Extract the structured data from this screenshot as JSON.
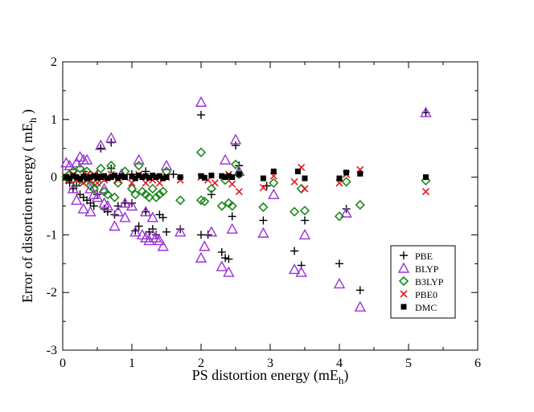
{
  "chart_data": {
    "type": "scatter",
    "xlabel": "PS distortion energy (mE",
    "xlabel_sub": "h",
    "xlabel_end": ")",
    "ylabel": "Error of distortion energy ( mE",
    "ylabel_sub": "h",
    "ylabel_end": " )",
    "xlim": [
      0,
      6
    ],
    "ylim": [
      -3,
      2
    ],
    "xticks": [
      0,
      1,
      2,
      3,
      4,
      5,
      6
    ],
    "yticks": [
      -3,
      -2,
      -1,
      0,
      1,
      2
    ],
    "grid": false,
    "legend_position": "bottom-right",
    "series": [
      {
        "name": "PBE",
        "marker": "plus",
        "color": "#000000",
        "points": [
          [
            0.05,
            -0.05
          ],
          [
            0.1,
            -0.1
          ],
          [
            0.15,
            -0.2
          ],
          [
            0.2,
            -0.15
          ],
          [
            0.25,
            -0.3
          ],
          [
            0.3,
            -0.35
          ],
          [
            0.35,
            -0.4
          ],
          [
            0.4,
            -0.45
          ],
          [
            0.45,
            -0.5
          ],
          [
            0.5,
            -0.3
          ],
          [
            0.55,
            0.5
          ],
          [
            0.6,
            -0.55
          ],
          [
            0.65,
            -0.6
          ],
          [
            0.7,
            0.6
          ],
          [
            0.75,
            -0.65
          ],
          [
            0.8,
            -0.5
          ],
          [
            0.9,
            -0.45
          ],
          [
            1.0,
            -0.45
          ],
          [
            1.05,
            -0.93
          ],
          [
            1.1,
            -0.85
          ],
          [
            1.2,
            -0.6
          ],
          [
            1.25,
            -0.95
          ],
          [
            1.3,
            -0.9
          ],
          [
            1.35,
            -1.0
          ],
          [
            1.4,
            -0.65
          ],
          [
            1.45,
            -0.7
          ],
          [
            1.5,
            -0.95
          ],
          [
            1.7,
            -0.9
          ],
          [
            2.0,
            1.08
          ],
          [
            2.0,
            -1.0
          ],
          [
            2.1,
            -1.0
          ],
          [
            2.15,
            -0.3
          ],
          [
            2.3,
            -1.3
          ],
          [
            2.35,
            -1.4
          ],
          [
            2.4,
            -1.42
          ],
          [
            2.45,
            -0.68
          ],
          [
            2.5,
            0.55
          ],
          [
            2.55,
            0.2
          ],
          [
            2.9,
            -0.75
          ],
          [
            2.95,
            -0.15
          ],
          [
            3.35,
            -1.28
          ],
          [
            3.45,
            -1.53
          ],
          [
            3.5,
            -0.75
          ],
          [
            4.0,
            -1.5
          ],
          [
            4.1,
            -0.55
          ],
          [
            4.3,
            -1.96
          ],
          [
            5.25,
            1.12
          ],
          [
            0.3,
            0.1
          ],
          [
            0.5,
            0.05
          ],
          [
            0.7,
            0.15
          ],
          [
            1.0,
            0.05
          ],
          [
            1.2,
            0.1
          ],
          [
            1.6,
            0.05
          ]
        ]
      },
      {
        "name": "BLYP",
        "marker": "triangle",
        "color": "#9b30d9",
        "points": [
          [
            0.05,
            0.25
          ],
          [
            0.1,
            0.2
          ],
          [
            0.15,
            -0.2
          ],
          [
            0.2,
            0.25
          ],
          [
            0.25,
            0.35
          ],
          [
            0.3,
            0.3
          ],
          [
            0.35,
            0.3
          ],
          [
            0.4,
            -0.2
          ],
          [
            0.45,
            -0.3
          ],
          [
            0.5,
            -0.35
          ],
          [
            0.55,
            0.55
          ],
          [
            0.6,
            -0.45
          ],
          [
            0.65,
            -0.5
          ],
          [
            0.7,
            0.68
          ],
          [
            0.75,
            -0.85
          ],
          [
            0.8,
            -0.6
          ],
          [
            0.85,
            0.05
          ],
          [
            0.9,
            -0.45
          ],
          [
            1.0,
            -0.5
          ],
          [
            1.05,
            -0.95
          ],
          [
            1.1,
            0.3
          ],
          [
            1.15,
            -1.0
          ],
          [
            1.2,
            -1.05
          ],
          [
            1.25,
            -1.1
          ],
          [
            1.3,
            -1.0
          ],
          [
            1.35,
            -1.05
          ],
          [
            1.4,
            -1.1
          ],
          [
            1.45,
            -1.2
          ],
          [
            1.5,
            0.2
          ],
          [
            1.7,
            -0.95
          ],
          [
            2.0,
            1.3
          ],
          [
            2.0,
            -1.4
          ],
          [
            2.05,
            -1.2
          ],
          [
            2.15,
            -0.95
          ],
          [
            2.3,
            -1.55
          ],
          [
            2.35,
            0.3
          ],
          [
            2.4,
            -1.65
          ],
          [
            2.45,
            -0.9
          ],
          [
            2.5,
            0.65
          ],
          [
            2.55,
            0.1
          ],
          [
            2.9,
            -0.97
          ],
          [
            3.05,
            -0.3
          ],
          [
            3.35,
            -1.6
          ],
          [
            3.45,
            -1.65
          ],
          [
            3.5,
            -1.0
          ],
          [
            4.0,
            -1.85
          ],
          [
            4.1,
            -0.62
          ],
          [
            4.3,
            -2.25
          ],
          [
            5.25,
            1.12
          ],
          [
            0.2,
            -0.4
          ],
          [
            0.3,
            -0.55
          ],
          [
            0.4,
            -0.6
          ],
          [
            0.6,
            -0.2
          ],
          [
            0.9,
            -0.7
          ],
          [
            1.2,
            -0.6
          ],
          [
            1.3,
            -0.7
          ]
        ]
      },
      {
        "name": "B3LYP",
        "marker": "diamond",
        "color": "#1c8a1c",
        "points": [
          [
            0.05,
            0.0
          ],
          [
            0.1,
            0.05
          ],
          [
            0.15,
            0.1
          ],
          [
            0.2,
            -0.1
          ],
          [
            0.25,
            0.15
          ],
          [
            0.3,
            -0.05
          ],
          [
            0.35,
            0.1
          ],
          [
            0.4,
            -0.15
          ],
          [
            0.45,
            -0.2
          ],
          [
            0.5,
            -0.1
          ],
          [
            0.55,
            0.15
          ],
          [
            0.6,
            -0.25
          ],
          [
            0.65,
            -0.3
          ],
          [
            0.7,
            0.2
          ],
          [
            0.75,
            -0.35
          ],
          [
            0.8,
            -0.1
          ],
          [
            0.9,
            0.1
          ],
          [
            1.0,
            -0.2
          ],
          [
            1.05,
            -0.3
          ],
          [
            1.1,
            0.2
          ],
          [
            1.15,
            -0.25
          ],
          [
            1.2,
            -0.3
          ],
          [
            1.25,
            -0.35
          ],
          [
            1.3,
            -0.2
          ],
          [
            1.35,
            -0.35
          ],
          [
            1.4,
            -0.3
          ],
          [
            1.45,
            -0.25
          ],
          [
            1.5,
            0.1
          ],
          [
            1.7,
            -0.4
          ],
          [
            2.0,
            0.43
          ],
          [
            2.0,
            -0.4
          ],
          [
            2.05,
            -0.42
          ],
          [
            2.15,
            -0.2
          ],
          [
            2.3,
            -0.5
          ],
          [
            2.35,
            -0.05
          ],
          [
            2.4,
            -0.45
          ],
          [
            2.45,
            -0.5
          ],
          [
            2.5,
            0.22
          ],
          [
            2.55,
            0.05
          ],
          [
            2.9,
            -0.52
          ],
          [
            3.05,
            -0.1
          ],
          [
            3.35,
            -0.6
          ],
          [
            3.45,
            -0.2
          ],
          [
            3.5,
            -0.58
          ],
          [
            4.0,
            -0.68
          ],
          [
            4.1,
            -0.08
          ],
          [
            4.3,
            -0.48
          ],
          [
            5.25,
            -0.06
          ]
        ]
      },
      {
        "name": "PBE0",
        "marker": "x",
        "color": "#e8161c",
        "points": [
          [
            0.05,
            0.0
          ],
          [
            0.1,
            -0.05
          ],
          [
            0.15,
            0.05
          ],
          [
            0.2,
            -0.05
          ],
          [
            0.25,
            0.0
          ],
          [
            0.3,
            -0.1
          ],
          [
            0.35,
            0.05
          ],
          [
            0.4,
            -0.05
          ],
          [
            0.45,
            0.05
          ],
          [
            0.5,
            -0.1
          ],
          [
            0.55,
            0.0
          ],
          [
            0.6,
            -0.05
          ],
          [
            0.7,
            0.05
          ],
          [
            0.8,
            -0.05
          ],
          [
            0.9,
            0.0
          ],
          [
            1.0,
            -0.1
          ],
          [
            1.1,
            0.05
          ],
          [
            1.2,
            -0.1
          ],
          [
            1.3,
            -0.05
          ],
          [
            1.4,
            -0.1
          ],
          [
            1.5,
            0.0
          ],
          [
            1.7,
            -0.05
          ],
          [
            2.0,
            0.0
          ],
          [
            2.1,
            -0.05
          ],
          [
            2.2,
            -0.1
          ],
          [
            2.4,
            0.05
          ],
          [
            2.45,
            -0.12
          ],
          [
            2.55,
            -0.25
          ],
          [
            2.9,
            -0.18
          ],
          [
            3.05,
            0.02
          ],
          [
            3.35,
            -0.08
          ],
          [
            3.45,
            0.17
          ],
          [
            3.5,
            -0.2
          ],
          [
            4.0,
            -0.1
          ],
          [
            4.1,
            0.05
          ],
          [
            4.3,
            0.13
          ],
          [
            5.25,
            -0.25
          ]
        ]
      },
      {
        "name": "DMC",
        "marker": "square",
        "color": "#000000",
        "points": [
          [
            0.05,
            0.0
          ],
          [
            0.1,
            -0.02
          ],
          [
            0.15,
            0.02
          ],
          [
            0.2,
            0.0
          ],
          [
            0.25,
            -0.03
          ],
          [
            0.3,
            0.01
          ],
          [
            0.35,
            -0.02
          ],
          [
            0.4,
            0.0
          ],
          [
            0.45,
            0.02
          ],
          [
            0.5,
            -0.01
          ],
          [
            0.55,
            0.0
          ],
          [
            0.6,
            0.02
          ],
          [
            0.65,
            -0.02
          ],
          [
            0.7,
            0.0
          ],
          [
            0.75,
            0.03
          ],
          [
            0.8,
            -0.01
          ],
          [
            0.85,
            0.02
          ],
          [
            0.9,
            0.0
          ],
          [
            1.0,
            0.01
          ],
          [
            1.05,
            -0.02
          ],
          [
            1.1,
            0.03
          ],
          [
            1.15,
            0.0
          ],
          [
            1.2,
            0.02
          ],
          [
            1.25,
            -0.01
          ],
          [
            1.3,
            0.03
          ],
          [
            1.35,
            0.0
          ],
          [
            1.4,
            0.02
          ],
          [
            1.45,
            -0.02
          ],
          [
            1.5,
            0.0
          ],
          [
            1.7,
            0.0
          ],
          [
            2.0,
            0.02
          ],
          [
            2.05,
            -0.01
          ],
          [
            2.15,
            0.03
          ],
          [
            2.3,
            0.02
          ],
          [
            2.35,
            0.0
          ],
          [
            2.4,
            0.02
          ],
          [
            2.45,
            0.0
          ],
          [
            2.55,
            0.05
          ],
          [
            2.9,
            -0.02
          ],
          [
            3.05,
            0.1
          ],
          [
            3.4,
            0.1
          ],
          [
            3.5,
            -0.02
          ],
          [
            4.0,
            -0.02
          ],
          [
            4.1,
            0.08
          ],
          [
            4.3,
            0.06
          ],
          [
            5.25,
            0.0
          ]
        ]
      }
    ]
  }
}
